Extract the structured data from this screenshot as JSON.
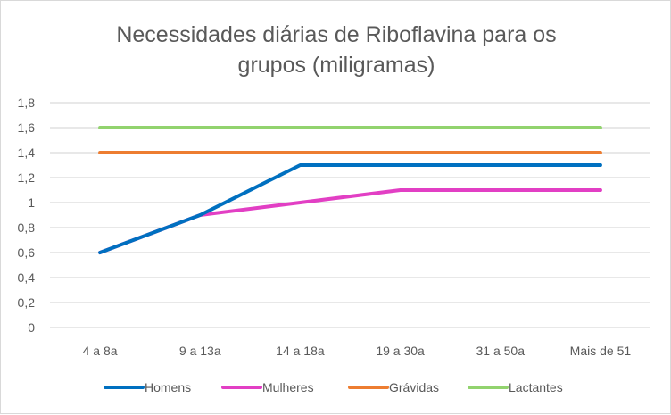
{
  "chart_data": {
    "type": "line",
    "title": "Necessidades diárias de Riboflavina para os grupos (miligramas)",
    "title_lines": [
      "Necessidades diárias de Riboflavina para os",
      "grupos (miligramas)"
    ],
    "xlabel": "",
    "ylabel": "",
    "categories": [
      "4 a 8a",
      "9 a 13a",
      "14 a 18a",
      "19 a 30a",
      "31 a 50a",
      "Mais de 51"
    ],
    "ylim": [
      0,
      1.8
    ],
    "yticks": [
      "0",
      "0,2",
      "0,4",
      "0,6",
      "0,8",
      "1",
      "1,2",
      "1,4",
      "1,6",
      "1,8"
    ],
    "grid": true,
    "legend_position": "bottom",
    "series": [
      {
        "name": "Homens",
        "color": "#0070c0",
        "values": [
          0.6,
          0.9,
          1.3,
          1.3,
          1.3,
          1.3
        ]
      },
      {
        "name": "Mulheres",
        "color": "#e23fc4",
        "values": [
          0.6,
          0.9,
          1.0,
          1.1,
          1.1,
          1.1
        ]
      },
      {
        "name": "Grávidas",
        "color": "#ed7d31",
        "values": [
          1.4,
          1.4,
          1.4,
          1.4,
          1.4,
          1.4
        ]
      },
      {
        "name": "Lactantes",
        "color": "#92d36e",
        "values": [
          1.6,
          1.6,
          1.6,
          1.6,
          1.6,
          1.6
        ]
      }
    ]
  }
}
